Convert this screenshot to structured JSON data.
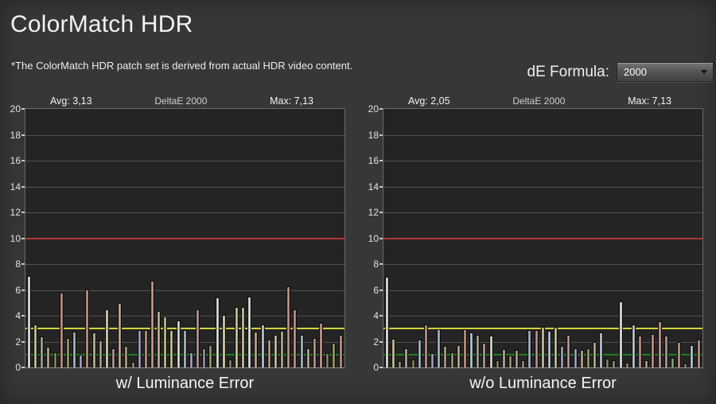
{
  "page": {
    "title": "ColorMatch HDR",
    "subtitle": "*The ColorMatch HDR patch set is derived from actual HDR video content.",
    "de_formula_label": "dE Formula:",
    "de_formula_value": "2000"
  },
  "colors": {
    "background": "#373737",
    "plot_background": "#242424",
    "plot_border": "#6a6a6a",
    "gridline": "#525252",
    "red_limit_line": "#b23537",
    "yellow_target_line": "#d4d23c",
    "green_target_line": "#1d801d",
    "text": "#f2f2f2"
  },
  "chart_data": [
    {
      "type": "bar",
      "title": "DeltaE 2000",
      "avg_label": "Avg: 3,13",
      "max_label": "Max: 7,13",
      "xlabel": "w/ Luminance Error",
      "ylabel": "",
      "ylim": [
        0,
        20
      ],
      "yticks": [
        0,
        2,
        4,
        6,
        8,
        10,
        12,
        14,
        16,
        18,
        20
      ],
      "gridlines": [
        2,
        4,
        6,
        8,
        12,
        14,
        16,
        18
      ],
      "legend": "none",
      "reference_lines": [
        {
          "name": "red-limit-line",
          "value": 10,
          "color": "#b23537"
        },
        {
          "name": "yellow-target-line",
          "value": 3,
          "color": "#d4d23c"
        },
        {
          "name": "green-target-line",
          "value": 1,
          "color": "#1d801d"
        }
      ],
      "values": [
        7.05,
        3.3,
        2.4,
        1.6,
        1.2,
        5.8,
        2.3,
        2.8,
        1.0,
        6.05,
        2.7,
        2.1,
        4.5,
        1.5,
        5.0,
        1.65,
        0.45,
        2.9,
        2.9,
        6.7,
        4.4,
        3.95,
        2.9,
        3.65,
        2.9,
        1.2,
        4.5,
        1.45,
        1.75,
        5.4,
        4.05,
        0.6,
        4.65,
        4.65,
        5.5,
        2.8,
        3.35,
        2.15,
        2.5,
        2.85,
        6.3,
        4.5,
        2.55,
        1.45,
        2.3,
        3.45,
        1.1,
        1.9,
        2.5
      ],
      "bar_colors": [
        "#e9e9e7",
        "#c6c191",
        "#9c9c8c",
        "#b7a283",
        "#73734e",
        "#bd8679",
        "#8f8f58",
        "#a4b3c6",
        "#9d94bf",
        "#c18577",
        "#b5b286",
        "#ab9678",
        "#d8d4a6",
        "#b18b90",
        "#c2a88a",
        "#ab9678",
        "#8f7d60",
        "#9d94bf",
        "#bd8679",
        "#c88f7d",
        "#c2a88a",
        "#b9c080",
        "#c6c191",
        "#dcdfd2",
        "#a4b3c6",
        "#9d94bf",
        "#b18b90",
        "#8c7fae",
        "#8f8f58",
        "#e3e6da",
        "#d8d4a6",
        "#73734e",
        "#ccc795",
        "#c6c191",
        "#e9e9e7",
        "#b7a283",
        "#b9c6d8",
        "#ab9678",
        "#c6c191",
        "#b7a283",
        "#bd8679",
        "#c18577",
        "#a4b3c6",
        "#b7a283",
        "#bd8679",
        "#c58c85",
        "#73734e",
        "#8f8f58",
        "#bd8679"
      ]
    },
    {
      "type": "bar",
      "title": "DeltaE 2000",
      "avg_label": "Avg: 2,05",
      "max_label": "Max: 7,13",
      "xlabel": "w/o Luminance Error",
      "ylabel": "",
      "ylim": [
        0,
        20
      ],
      "yticks": [
        0,
        2,
        4,
        6,
        8,
        10,
        12,
        14,
        16,
        18,
        20
      ],
      "gridlines": [
        2,
        4,
        6,
        8,
        12,
        14,
        16,
        18
      ],
      "legend": "none",
      "reference_lines": [
        {
          "name": "red-limit-line",
          "value": 10,
          "color": "#b23537"
        },
        {
          "name": "yellow-target-line",
          "value": 3,
          "color": "#d4d23c"
        },
        {
          "name": "green-target-line",
          "value": 1,
          "color": "#1d801d"
        }
      ],
      "values": [
        7.0,
        2.2,
        0.5,
        1.45,
        0.6,
        2.16,
        3.3,
        1.13,
        2.97,
        1.65,
        1.2,
        1.7,
        2.95,
        2.7,
        2.5,
        1.9,
        2.45,
        0.55,
        1.4,
        0.9,
        1.35,
        0.55,
        2.9,
        2.9,
        3.15,
        2.86,
        3.15,
        1.65,
        2.55,
        1.45,
        1.35,
        1.45,
        2.0,
        2.7,
        0.7,
        0.53,
        5.1,
        0.4,
        3.35,
        2.45,
        0.53,
        2.6,
        3.55,
        2.45,
        0.75,
        2.0,
        0.3,
        1.7,
        2.15
      ],
      "bar_colors": [
        "#e9e9e7",
        "#c6c191",
        "#8f7d60",
        "#b7a283",
        "#73734e",
        "#a4b3c6",
        "#bd8679",
        "#9d94bf",
        "#a4b3c6",
        "#ab9678",
        "#8f8f58",
        "#b7a283",
        "#bd8679",
        "#b9c6d8",
        "#9c9c8c",
        "#b18b90",
        "#dcdfd2",
        "#73734e",
        "#b7a283",
        "#8f8f58",
        "#ab9678",
        "#8f7d60",
        "#a4b3c6",
        "#bd8679",
        "#c6c191",
        "#b9c6d8",
        "#c6c191",
        "#9d94bf",
        "#b18b90",
        "#9d94bf",
        "#b7a283",
        "#8f8f58",
        "#b7a283",
        "#b9c6d8",
        "#73734e",
        "#8f7d60",
        "#e9e9e7",
        "#8f7d60",
        "#b9c6d8",
        "#bd8679",
        "#ab9678",
        "#bd8679",
        "#c58c85",
        "#b18b90",
        "#7a9a5a",
        "#bd8679",
        "#73734e",
        "#b9c6d8",
        "#bd8679"
      ]
    }
  ]
}
